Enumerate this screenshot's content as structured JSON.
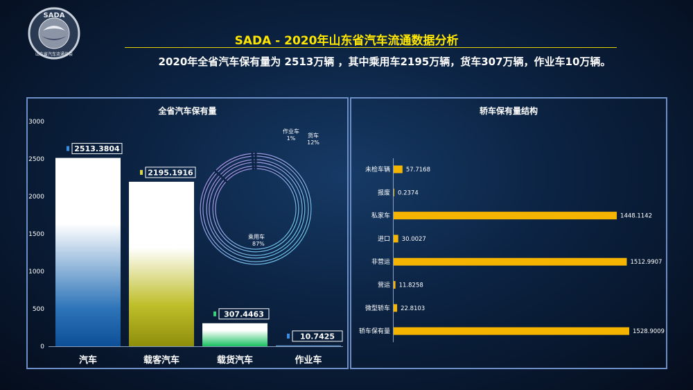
{
  "logo": {
    "text": "SADA",
    "subtext": "山东省汽车流通协会"
  },
  "header": {
    "title": "SADA -  2020年山东省汽车流通数据分析",
    "subtitle": "2020年全省汽车保有量为 2513万辆  ，其中乘用车2195万辆，货车307万辆，作业车10万辆。"
  },
  "colors": {
    "title": "#ffe600",
    "panel_border": "#6d8fc8",
    "hbar": "#f5b400"
  },
  "chart_data": [
    {
      "type": "bar",
      "title": "全省汽车保有量",
      "categories": [
        "汽车",
        "载客汽车",
        "载货汽车",
        "作业车"
      ],
      "values": [
        2513.3804,
        2195.1916,
        307.4463,
        10.7425
      ],
      "value_labels": [
        "2513.3804",
        "2195.1916",
        "307.4463",
        "10.7425"
      ],
      "yticks": [
        "0",
        "500",
        "1000",
        "1500",
        "2000",
        "2500",
        "3000"
      ],
      "ylim": [
        0,
        3000
      ],
      "colors": [
        "#1e66b0",
        "#a4a318",
        "#2fc46a",
        "#2a6db8"
      ]
    },
    {
      "type": "pie",
      "labels": [
        "乘用车",
        "货车",
        "作业车"
      ],
      "percent_labels": [
        "87%",
        "12%",
        "1%"
      ],
      "values": [
        87,
        12,
        1
      ]
    },
    {
      "type": "bar",
      "title": "轿车保有量结构",
      "orientation": "horizontal",
      "categories": [
        "未检车辆",
        "报废",
        "私家车",
        "进口",
        "非营运",
        "营运",
        "微型轿车",
        "轿车保有量"
      ],
      "values": [
        57.7168,
        0.2374,
        1448.1142,
        30.0027,
        1512.9907,
        11.8258,
        22.8103,
        1528.9009
      ],
      "value_labels": [
        "57.7168",
        "0.2374",
        "1448.1142",
        "30.0027",
        "1512.9907",
        "11.8258",
        "22.8103",
        "1528.9009"
      ]
    }
  ]
}
